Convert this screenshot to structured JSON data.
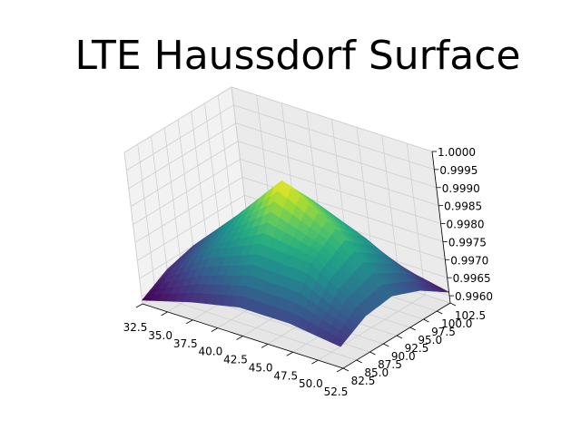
{
  "chart_data": {
    "type": "surface3d",
    "title": "LTE Haussdorf Surface",
    "xlabel": "",
    "ylabel": "",
    "zlabel": "",
    "colormap": "viridis",
    "grid": true,
    "xlim": [
      32.5,
      52.5
    ],
    "ylim": [
      82.5,
      102.5
    ],
    "zlim": [
      0.9958,
      1.0
    ],
    "x_ticks": [
      "32.5",
      "35.0",
      "37.5",
      "40.0",
      "42.5",
      "45.0",
      "47.5",
      "50.0",
      "52.5"
    ],
    "y_ticks": [
      "82.5",
      "85.0",
      "87.5",
      "90.0",
      "92.5",
      "95.0",
      "97.5",
      "100.0",
      "102.5"
    ],
    "z_ticks": [
      "0.9960",
      "0.9965",
      "0.9970",
      "0.9975",
      "0.9980",
      "0.9985",
      "0.9990",
      "0.9995",
      "1.0000"
    ],
    "x": [
      32.5,
      37.5,
      42.5,
      47.5,
      52.5
    ],
    "y": [
      82.5,
      87.5,
      92.5,
      97.5,
      102.5
    ],
    "z": [
      [
        0.9959,
        0.9963,
        0.9966,
        0.9966,
        0.9964
      ],
      [
        0.9963,
        0.9973,
        0.9979,
        0.9978,
        0.9968
      ],
      [
        0.9965,
        0.9978,
        0.9992,
        0.9983,
        0.9969
      ],
      [
        0.9964,
        0.9974,
        0.9982,
        0.9976,
        0.9966
      ],
      [
        0.9961,
        0.9964,
        0.9968,
        0.9964,
        0.9961
      ]
    ]
  }
}
